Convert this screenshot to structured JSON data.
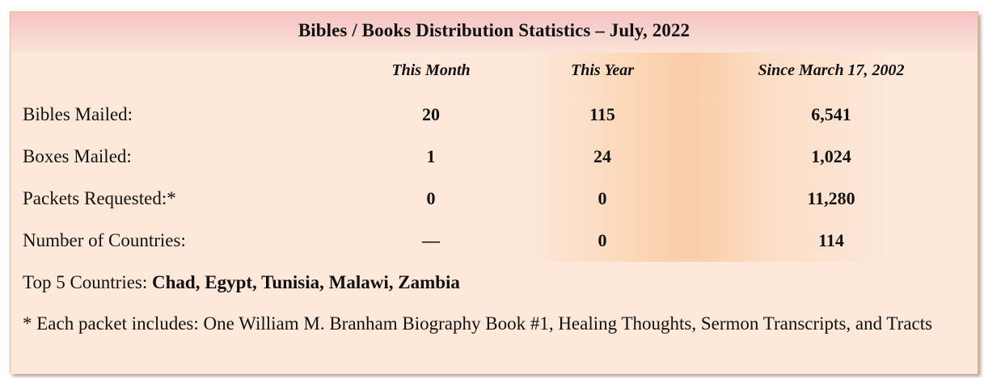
{
  "title": "Bibles / Books Distribution Statistics – July, 2022",
  "columns": [
    "This Month",
    "This Year",
    "Since March 17, 2002"
  ],
  "rows": [
    {
      "label": "Bibles Mailed:",
      "values": [
        "20",
        "115",
        "6,541"
      ]
    },
    {
      "label": "Boxes Mailed:",
      "values": [
        "1",
        "24",
        "1,024"
      ]
    },
    {
      "label": "Packets Requested:*",
      "values": [
        "0",
        "0",
        "11,280"
      ]
    },
    {
      "label": "Number of Countries:",
      "values": [
        "—",
        "0",
        "114"
      ]
    }
  ],
  "top_countries": {
    "label": "Top 5 Countries: ",
    "countries": "Chad, Egypt, Tunisia, Malawi, Zambia"
  },
  "footnote": "* Each packet includes: One William M. Branham Biography Book #1, Healing Thoughts, Sermon Transcripts, and Tracts",
  "colors": {
    "background": "#fde8da",
    "banner": "#f4c3c3",
    "border": "#e9b58c",
    "column_highlight": "#f8c496"
  }
}
